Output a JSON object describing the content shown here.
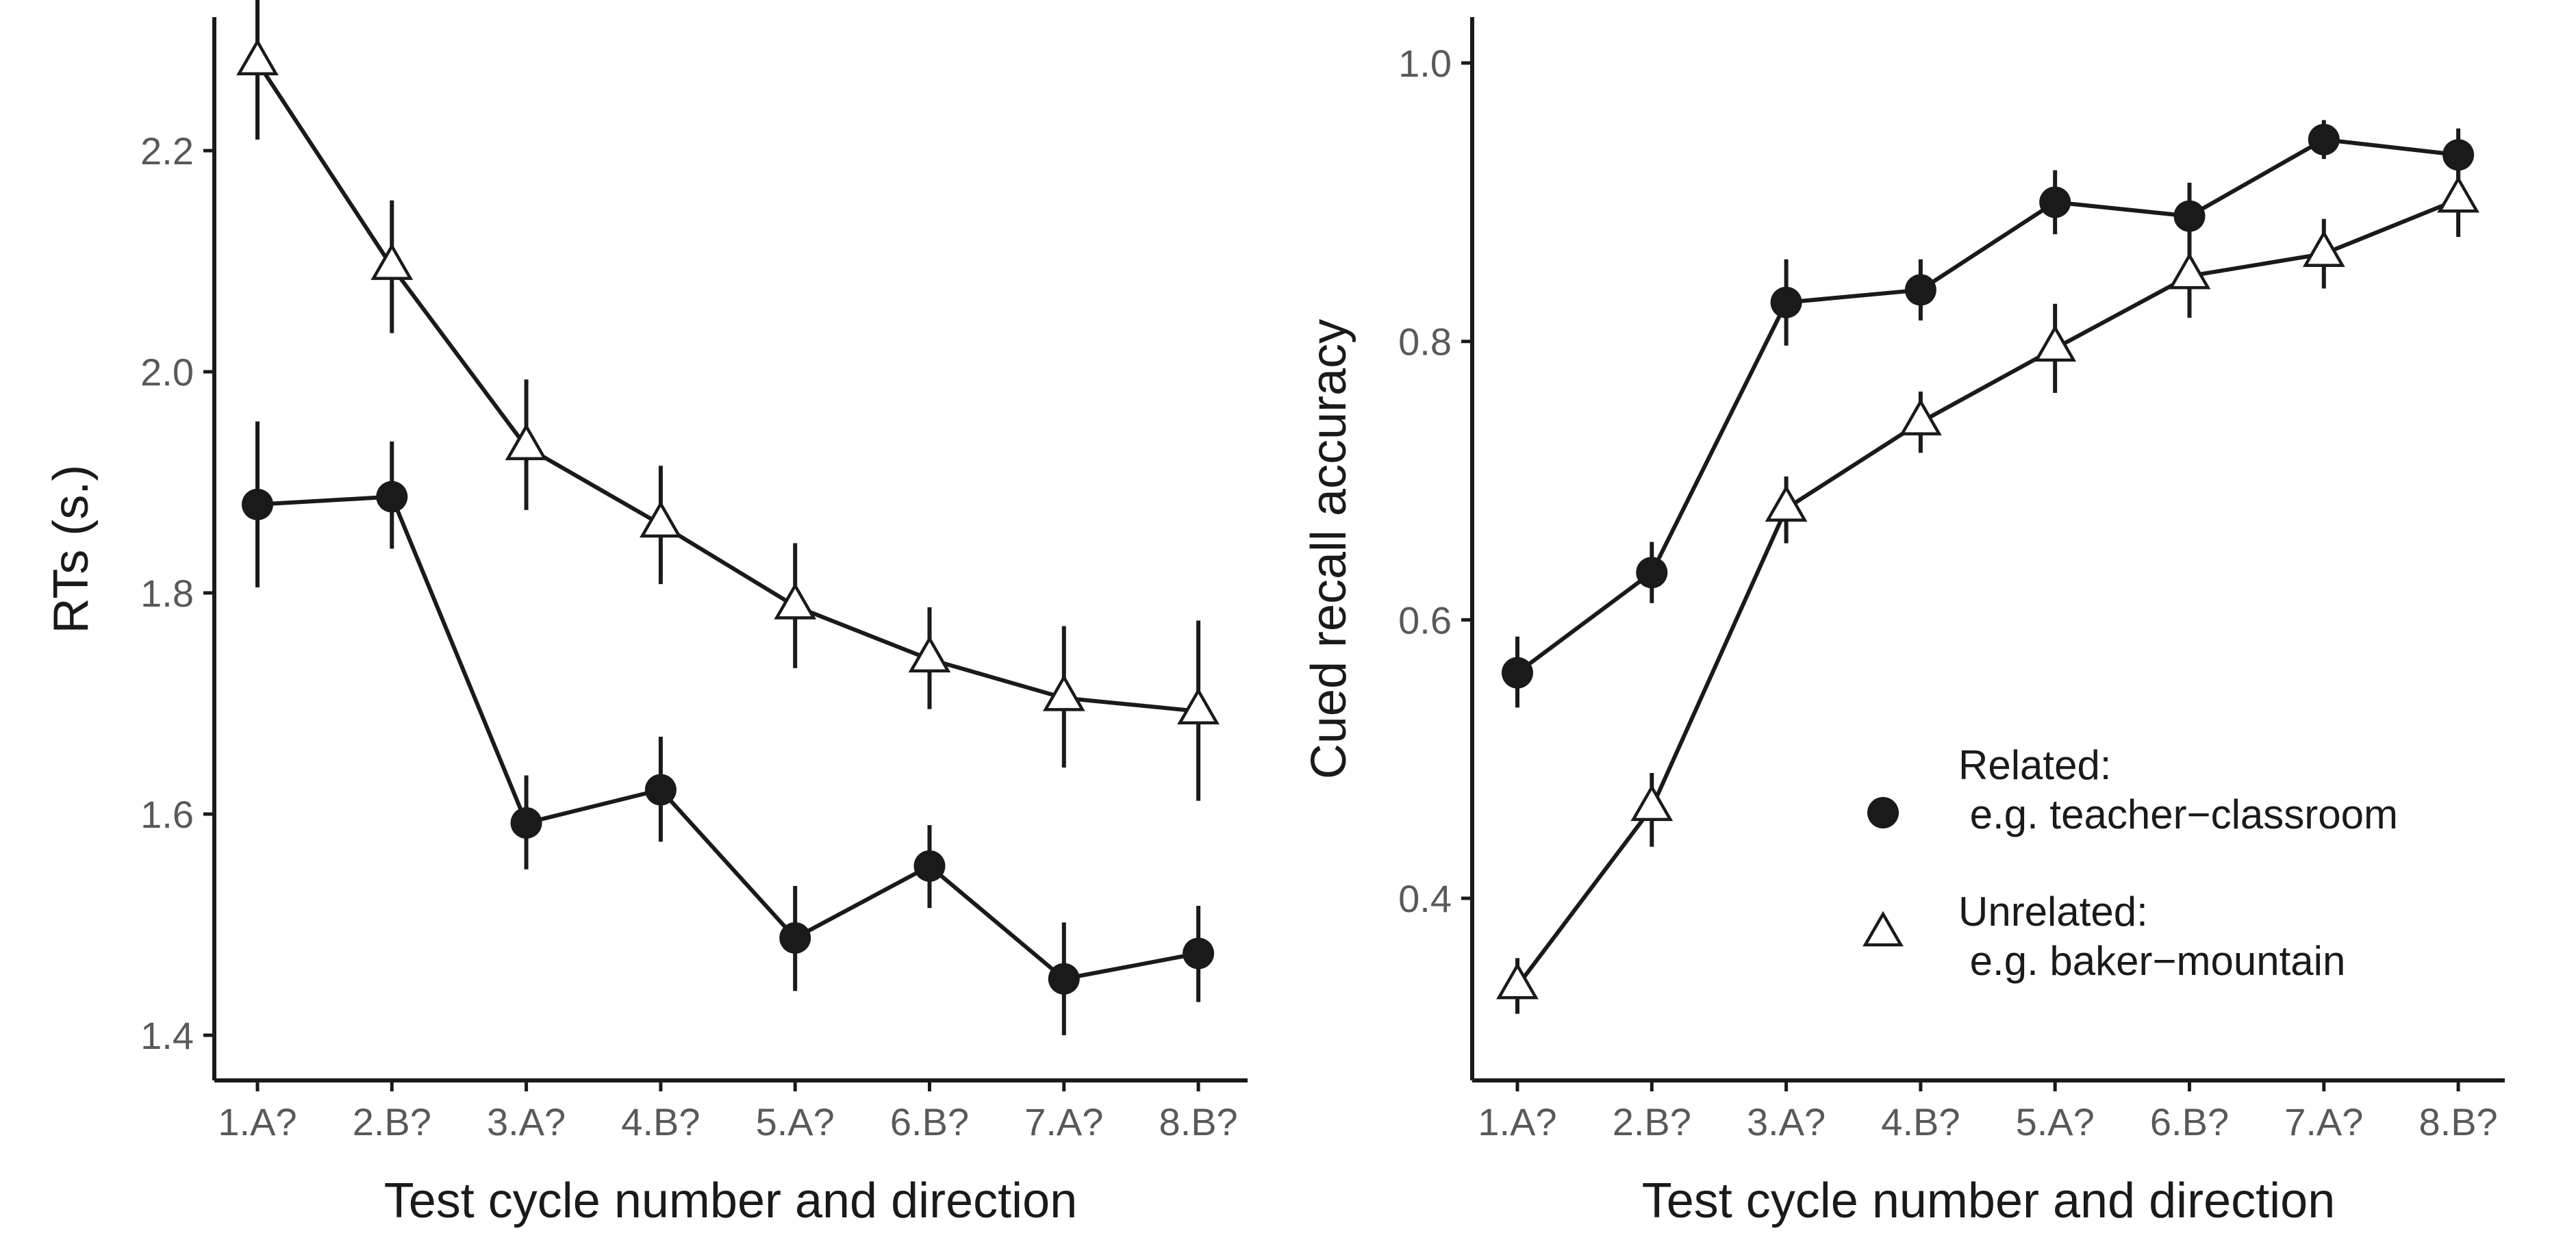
{
  "chart_data": [
    {
      "type": "line",
      "title": "",
      "xlabel": "Test cycle number and direction",
      "ylabel": "RTs (s.)",
      "categories": [
        "1.A?",
        "2.B?",
        "3.A?",
        "4.B?",
        "5.A?",
        "6.B?",
        "7.A?",
        "8.B?"
      ],
      "ylim": [
        1.35,
        2.4
      ],
      "yticks": [
        1.4,
        1.6,
        1.8,
        2.0,
        2.2
      ],
      "ytick_labels": [
        "1.4",
        "1.6",
        "1.8",
        "2.0",
        "2.2"
      ],
      "grid": false,
      "series": [
        {
          "name": "Related",
          "marker": "circle",
          "values": [
            1.88,
            1.887,
            1.592,
            1.622,
            1.488,
            1.553,
            1.451,
            1.474
          ],
          "err_low": [
            1.805,
            1.84,
            1.55,
            1.575,
            1.44,
            1.515,
            1.4,
            1.43
          ],
          "err_high": [
            1.955,
            1.937,
            1.635,
            1.67,
            1.535,
            1.59,
            1.502,
            1.517
          ]
        },
        {
          "name": "Unrelated",
          "marker": "triangle",
          "values": [
            2.28,
            2.095,
            1.932,
            1.862,
            1.788,
            1.74,
            1.705,
            1.693
          ],
          "err_low": [
            2.21,
            2.035,
            1.875,
            1.808,
            1.732,
            1.695,
            1.642,
            1.612
          ],
          "err_high": [
            2.35,
            2.155,
            1.993,
            1.915,
            1.845,
            1.787,
            1.77,
            1.775
          ]
        }
      ]
    },
    {
      "type": "line",
      "title": "",
      "xlabel": "Test cycle number and direction",
      "ylabel": "Cued recall accuracy",
      "categories": [
        "1.A?",
        "2.B?",
        "3.A?",
        "4.B?",
        "5.A?",
        "6.B?",
        "7.A?",
        "8.B?"
      ],
      "ylim": [
        0.29,
        1.035
      ],
      "yticks": [
        0.4,
        0.6,
        0.8,
        1.0
      ],
      "ytick_labels": [
        "0.4",
        "0.6",
        "0.8",
        "1.0"
      ],
      "grid": false,
      "legend": {
        "position": "bottom-right",
        "entries": [
          {
            "line1": "Related:",
            "line2": " e.g. teacher−classroom",
            "marker": "circle"
          },
          {
            "line1": "Unrelated:",
            "line2": " e.g. baker−mountain",
            "marker": "triangle"
          }
        ]
      },
      "series": [
        {
          "name": "Related",
          "marker": "circle",
          "values": [
            0.562,
            0.634,
            0.828,
            0.837,
            0.9,
            0.89,
            0.945,
            0.934
          ],
          "err_low": [
            0.537,
            0.612,
            0.797,
            0.815,
            0.877,
            0.866,
            0.931,
            0.915
          ],
          "err_high": [
            0.588,
            0.656,
            0.859,
            0.859,
            0.923,
            0.914,
            0.959,
            0.953
          ]
        },
        {
          "name": "Unrelated",
          "marker": "triangle",
          "values": [
            0.337,
            0.465,
            0.68,
            0.742,
            0.795,
            0.847,
            0.863,
            0.902
          ],
          "err_low": [
            0.317,
            0.437,
            0.655,
            0.72,
            0.763,
            0.817,
            0.838,
            0.875
          ],
          "err_high": [
            0.357,
            0.49,
            0.703,
            0.764,
            0.827,
            0.877,
            0.888,
            0.93
          ]
        }
      ]
    }
  ]
}
